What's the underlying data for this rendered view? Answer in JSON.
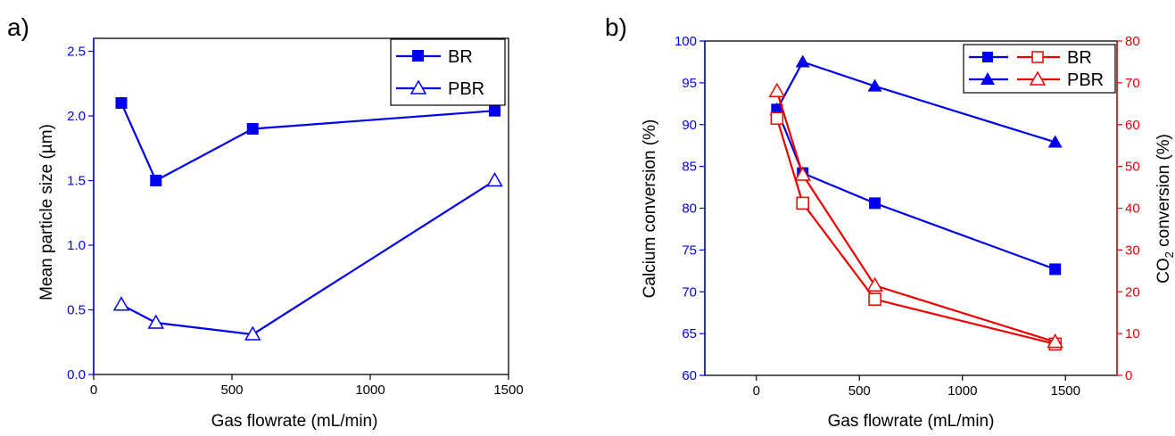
{
  "colors": {
    "blue": "#0000ee",
    "red": "#ee0000",
    "black": "#000000"
  },
  "chart_data": [
    {
      "type": "line",
      "panel_label": "a)",
      "xlabel": "Gas flowrate (mL/min)",
      "ylabel": "Mean particle size (µm)",
      "xlim": [
        0,
        1500
      ],
      "ylim": [
        0.0,
        2.6
      ],
      "x_ticks": [
        0,
        500,
        1000,
        1500
      ],
      "y_ticks": [
        0.0,
        0.5,
        1.0,
        1.5,
        2.0,
        2.5
      ],
      "x_tick_labels": [
        "0",
        "500",
        "1000",
        "1500"
      ],
      "y_tick_labels": [
        "0.0",
        "0.5",
        "1.0",
        "1.5",
        "2.0",
        "2.5"
      ],
      "legend_position": "top-right",
      "series": [
        {
          "name": "BR",
          "marker": "square-filled",
          "color": "#0000ee",
          "x": [
            100,
            225,
            575,
            1450
          ],
          "y": [
            2.1,
            1.5,
            1.9,
            2.04
          ]
        },
        {
          "name": "PBR",
          "marker": "triangle-open",
          "color": "#0000ee",
          "x": [
            100,
            225,
            575,
            1450
          ],
          "y": [
            0.54,
            0.4,
            0.31,
            1.5
          ]
        }
      ]
    },
    {
      "type": "line",
      "panel_label": "b)",
      "xlabel": "Gas flowrate (mL/min)",
      "ylabel": "Calcium conversion (%)",
      "y2label_prefix": "CO",
      "y2label_sub": "2",
      "y2label_suffix": " conversion (%)",
      "xlim": [
        -250,
        1750
      ],
      "ylim": [
        60,
        100
      ],
      "y2lim": [
        0,
        80
      ],
      "x_ticks": [
        0,
        500,
        1000,
        1500
      ],
      "y_ticks": [
        60,
        65,
        70,
        75,
        80,
        85,
        90,
        95,
        100
      ],
      "y2_ticks": [
        0,
        10,
        20,
        30,
        40,
        50,
        60,
        70,
        80
      ],
      "x_tick_labels": [
        "0",
        "500",
        "1000",
        "1500"
      ],
      "y_tick_labels": [
        "60",
        "65",
        "70",
        "75",
        "80",
        "85",
        "90",
        "95",
        "100"
      ],
      "y2_tick_labels": [
        "0",
        "10",
        "20",
        "30",
        "40",
        "50",
        "60",
        "70",
        "80"
      ],
      "legend_position": "top-right",
      "legend_labels": [
        "BR",
        "PBR"
      ],
      "series": [
        {
          "name": "BR",
          "axis": "left",
          "marker": "square-filled",
          "color": "#0000ee",
          "x": [
            100,
            225,
            575,
            1450
          ],
          "y": [
            91.8,
            84.2,
            80.6,
            72.7
          ]
        },
        {
          "name": "PBR",
          "axis": "left",
          "marker": "triangle-filled",
          "color": "#0000ee",
          "x": [
            100,
            225,
            575,
            1450
          ],
          "y": [
            91.8,
            97.5,
            94.6,
            87.9
          ]
        },
        {
          "name": "BR",
          "axis": "right",
          "marker": "square-open",
          "color": "#ee0000",
          "x": [
            100,
            225,
            575,
            1450
          ],
          "y": [
            61.5,
            41.2,
            18.2,
            7.5
          ]
        },
        {
          "name": "PBR",
          "axis": "right",
          "marker": "triangle-open",
          "color": "#ee0000",
          "x": [
            100,
            225,
            575,
            1450
          ],
          "y": [
            68.0,
            48.0,
            21.5,
            8.0
          ]
        }
      ]
    }
  ]
}
